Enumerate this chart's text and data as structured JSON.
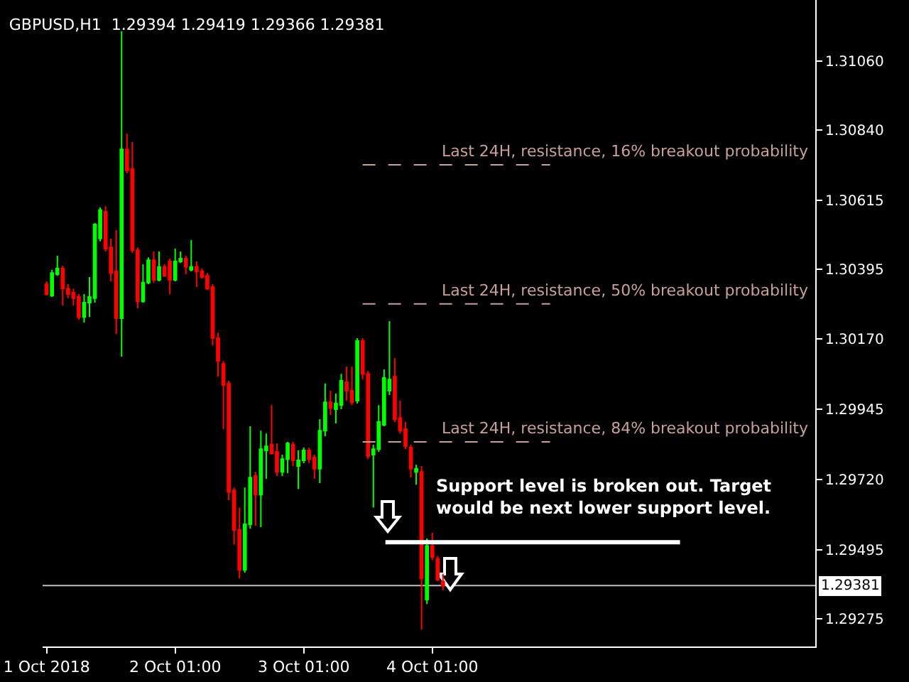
{
  "chart_data": {
    "type": "candlestick",
    "title": "GBPUSD,H1  1.29394 1.29419 1.29366 1.29381",
    "x": [
      "2018-10-01T01:00",
      "2018-10-01T02:00",
      "2018-10-01T03:00",
      "2018-10-01T04:00",
      "2018-10-01T05:00",
      "2018-10-01T06:00",
      "2018-10-01T07:00",
      "2018-10-01T08:00",
      "2018-10-01T09:00",
      "2018-10-01T10:00",
      "2018-10-01T11:00",
      "2018-10-01T12:00",
      "2018-10-01T13:00",
      "2018-10-01T14:00",
      "2018-10-01T15:00",
      "2018-10-01T16:00",
      "2018-10-01T17:00",
      "2018-10-01T18:00",
      "2018-10-01T19:00",
      "2018-10-01T20:00",
      "2018-10-01T21:00",
      "2018-10-01T22:00",
      "2018-10-01T23:00",
      "2018-10-02T00:00",
      "2018-10-02T01:00",
      "2018-10-02T02:00",
      "2018-10-02T03:00",
      "2018-10-02T04:00",
      "2018-10-02T05:00",
      "2018-10-02T06:00",
      "2018-10-02T07:00",
      "2018-10-02T08:00",
      "2018-10-02T09:00",
      "2018-10-02T10:00",
      "2018-10-02T11:00",
      "2018-10-02T12:00",
      "2018-10-02T13:00",
      "2018-10-02T14:00",
      "2018-10-02T15:00",
      "2018-10-02T16:00",
      "2018-10-02T17:00",
      "2018-10-02T18:00",
      "2018-10-02T19:00",
      "2018-10-02T20:00",
      "2018-10-02T21:00",
      "2018-10-02T22:00",
      "2018-10-02T23:00",
      "2018-10-03T00:00",
      "2018-10-03T01:00",
      "2018-10-03T02:00",
      "2018-10-03T03:00",
      "2018-10-03T04:00",
      "2018-10-03T05:00",
      "2018-10-03T06:00",
      "2018-10-03T07:00",
      "2018-10-03T08:00",
      "2018-10-03T09:00",
      "2018-10-03T10:00",
      "2018-10-03T11:00",
      "2018-10-03T12:00",
      "2018-10-03T13:00",
      "2018-10-03T14:00",
      "2018-10-03T15:00",
      "2018-10-03T16:00",
      "2018-10-03T17:00",
      "2018-10-03T18:00",
      "2018-10-03T19:00",
      "2018-10-03T20:00",
      "2018-10-03T21:00",
      "2018-10-03T22:00",
      "2018-10-03T23:00",
      "2018-10-04T00:00",
      "2018-10-04T01:00",
      "2018-10-04T02:00",
      "2018-10-04T03:00"
    ],
    "ohlc": [
      [
        1.30346,
        1.30355,
        1.3031,
        1.30314
      ],
      [
        1.3031,
        1.30392,
        1.30305,
        1.30382
      ],
      [
        1.30378,
        1.30437,
        1.30373,
        1.30396
      ],
      [
        1.30396,
        1.30405,
        1.30278,
        1.30332
      ],
      [
        1.30332,
        1.30346,
        1.30301,
        1.30314
      ],
      [
        1.30319,
        1.30332,
        1.30278,
        1.30301
      ],
      [
        1.30305,
        1.30314,
        1.30232,
        1.30241
      ],
      [
        1.30241,
        1.30314,
        1.30223,
        1.30287
      ],
      [
        1.30287,
        1.30369,
        1.30241,
        1.30305
      ],
      [
        1.30301,
        1.30542,
        1.30287,
        1.30537
      ],
      [
        1.30492,
        1.30592,
        1.30483,
        1.30583
      ],
      [
        1.30578,
        1.30596,
        1.30451,
        1.3046
      ],
      [
        1.30464,
        1.30492,
        1.30355,
        1.30382
      ],
      [
        1.30387,
        1.30519,
        1.30187,
        1.30237
      ],
      [
        1.30237,
        1.31156,
        1.30114,
        1.30778
      ],
      [
        1.30778,
        1.30828,
        1.30701,
        1.3071
      ],
      [
        1.30715,
        1.30801,
        1.30446,
        1.30455
      ],
      [
        1.30455,
        1.30464,
        1.30269,
        1.30291
      ],
      [
        1.30291,
        1.3041,
        1.30287,
        1.30351
      ],
      [
        1.30351,
        1.30432,
        1.30346,
        1.30423
      ],
      [
        1.30423,
        1.30451,
        1.30351,
        1.3036
      ],
      [
        1.3036,
        1.30451,
        1.30355,
        1.30401
      ],
      [
        1.30401,
        1.3041,
        1.30369,
        1.30373
      ],
      [
        1.30419,
        1.30428,
        1.30314,
        1.3036
      ],
      [
        1.3036,
        1.3046,
        1.30355,
        1.30419
      ],
      [
        1.30419,
        1.30451,
        1.30414,
        1.30428
      ],
      [
        1.30428,
        1.30437,
        1.30378,
        1.30401
      ],
      [
        1.30392,
        1.30487,
        1.30387,
        1.30401
      ],
      [
        1.30401,
        1.30419,
        1.30337,
        1.30387
      ],
      [
        1.30387,
        1.30396,
        1.30364,
        1.30369
      ],
      [
        1.30373,
        1.30382,
        1.30328,
        1.30332
      ],
      [
        1.30337,
        1.30346,
        1.3015,
        1.30173
      ],
      [
        1.30173,
        1.30191,
        1.3005,
        1.301
      ],
      [
        1.30091,
        1.301,
        1.29882,
        1.30023
      ],
      [
        1.30028,
        1.30037,
        1.29654,
        1.29681
      ],
      [
        1.29686,
        1.29695,
        1.29513,
        1.29559
      ],
      [
        1.29559,
        1.29631,
        1.29404,
        1.29431
      ],
      [
        1.29431,
        1.29695,
        1.29422,
        1.29577
      ],
      [
        1.29577,
        1.29891,
        1.29563,
        1.29727
      ],
      [
        1.29732,
        1.29745,
        1.29572,
        1.29672
      ],
      [
        1.29672,
        1.29877,
        1.29568,
        1.29818
      ],
      [
        1.29814,
        1.29868,
        1.29723,
        1.29827
      ],
      [
        1.29832,
        1.29959,
        1.298,
        1.29805
      ],
      [
        1.29809,
        1.29836,
        1.29732,
        1.29745
      ],
      [
        1.29745,
        1.298,
        1.29732,
        1.29786
      ],
      [
        1.29786,
        1.29841,
        1.29741,
        1.29836
      ],
      [
        1.29832,
        1.29841,
        1.29764,
        1.29782
      ],
      [
        1.29764,
        1.29814,
        1.2969,
        1.29782
      ],
      [
        1.29782,
        1.29823,
        1.29773,
        1.29814
      ],
      [
        1.29814,
        1.29823,
        1.29773,
        1.29786
      ],
      [
        1.29791,
        1.298,
        1.29723,
        1.29755
      ],
      [
        1.29755,
        1.29914,
        1.29709,
        1.29877
      ],
      [
        1.29877,
        1.30028,
        1.29859,
        1.29968
      ],
      [
        1.29968,
        1.30005,
        1.29927,
        1.2995
      ],
      [
        1.29946,
        1.29996,
        1.299,
        1.29964
      ],
      [
        1.29959,
        1.30059,
        1.29946,
        1.30037
      ],
      [
        1.30032,
        1.30082,
        1.29973,
        1.30005
      ],
      [
        1.30005,
        1.30082,
        1.29959,
        1.29968
      ],
      [
        1.29973,
        1.30173,
        1.29964,
        1.30164
      ],
      [
        1.30164,
        1.30173,
        1.30041,
        1.30059
      ],
      [
        1.30059,
        1.30068,
        1.29786,
        1.29795
      ],
      [
        1.298,
        1.29832,
        1.29631,
        1.29818
      ],
      [
        1.29818,
        1.29959,
        1.29809,
        1.29905
      ],
      [
        1.29896,
        1.30073,
        1.29891,
        1.30046
      ],
      [
        1.30005,
        1.30228,
        1.29991,
        1.30041
      ],
      [
        1.3005,
        1.30109,
        1.29905,
        1.29914
      ],
      [
        1.29918,
        1.29973,
        1.29868,
        1.29877
      ],
      [
        1.29882,
        1.29905,
        1.29818,
        1.29827
      ],
      [
        1.29823,
        1.29832,
        1.29727,
        1.29755
      ],
      [
        1.29745,
        1.29768,
        1.29704,
        1.29755
      ],
      [
        1.29745,
        1.29764,
        1.2924,
        1.29404
      ],
      [
        1.29336,
        1.29532,
        1.29322,
        1.29508
      ],
      [
        1.29508,
        1.2955,
        1.29463,
        1.29472
      ],
      [
        1.29467,
        1.29476,
        1.29395,
        1.294
      ],
      [
        1.29394,
        1.29419,
        1.29366,
        1.29381
      ]
    ],
    "colors": [
      "#ff0000",
      "#00ff00",
      "#00ff00",
      "#ff0000",
      "#ff0000",
      "#ff0000",
      "#ff0000",
      "#00ff00",
      "#00ff00",
      "#00ff00",
      "#00ff00",
      "#ff0000",
      "#ff0000",
      "#ff0000",
      "#00ff00",
      "#ff0000",
      "#ff0000",
      "#ff0000",
      "#00ff00",
      "#00ff00",
      "#ff0000",
      "#00ff00",
      "#ff0000",
      "#ff0000",
      "#00ff00",
      "#00ff00",
      "#ff0000",
      "#00ff00",
      "#ff0000",
      "#ff0000",
      "#ff0000",
      "#ff0000",
      "#ff0000",
      "#ff0000",
      "#ff0000",
      "#ff0000",
      "#ff0000",
      "#00ff00",
      "#00ff00",
      "#ff0000",
      "#00ff00",
      "#00ff00",
      "#ff0000",
      "#ff0000",
      "#00ff00",
      "#00ff00",
      "#ff0000",
      "#00ff00",
      "#00ff00",
      "#ff0000",
      "#ff0000",
      "#00ff00",
      "#00ff00",
      "#ff0000",
      "#00ff00",
      "#00ff00",
      "#ff0000",
      "#ff0000",
      "#00ff00",
      "#ff0000",
      "#ff0000",
      "#00ff00",
      "#00ff00",
      "#00ff00",
      "#00ff00",
      "#ff0000",
      "#ff0000",
      "#ff0000",
      "#ff0000",
      "#00ff00",
      "#ff0000",
      "#00ff00",
      "#ff0000",
      "#ff0000",
      "#ff0000"
    ],
    "series": [
      {
        "type": "line",
        "name": "Last 24H, resistance, 16% breakout probability",
        "x": [
          "2018-10-03T12:00",
          "2018-10-04T23:00"
        ],
        "values": [
          1.30728,
          1.30728
        ],
        "color": "#c8a09a",
        "line_style": "dashed"
      },
      {
        "type": "line",
        "name": "Last 24H, resistance, 50% breakout probability",
        "x": [
          "2018-10-03T12:00",
          "2018-10-04T23:00"
        ],
        "values": [
          1.30283,
          1.30283
        ],
        "color": "#c8a09a",
        "line_style": "dashed"
      },
      {
        "type": "line",
        "name": "Last 24H, resistance, 84% breakout probability",
        "x": [
          "2018-10-03T12:00",
          "2018-10-04T23:00"
        ],
        "values": [
          1.29841,
          1.29841
        ],
        "color": "#c8a09a",
        "line_style": "dashed"
      },
      {
        "type": "line",
        "x": [
          "2018-10-03T16:15",
          "2018-10-05T23:15"
        ],
        "values": [
          1.2952,
          1.2952
        ],
        "color": "#ffffff",
        "line_style": "solid"
      }
    ],
    "ref_lines": [
      {
        "axis": "y",
        "value": 1.29381,
        "label": "1.29381",
        "color": "#c0c0c0"
      }
    ],
    "annotations": [
      "Support level is broken out. Target would be next lower support level."
    ],
    "xlim": [
      "2018-10-01T00:15",
      "2018-10-07T00:30"
    ],
    "ylim": [
      1.29186,
      1.31256
    ],
    "xticks": [
      {
        "value": "2018-10-01T01:00",
        "label": "1 Oct 2018"
      },
      {
        "value": "2018-10-02T01:00",
        "label": "2 Oct 01:00"
      },
      {
        "value": "2018-10-03T01:00",
        "label": "3 Oct 01:00"
      },
      {
        "value": "2018-10-04T01:00",
        "label": "4 Oct 01:00"
      }
    ],
    "yticks": [
      1.29275,
      1.29495,
      {
        "value": 1.2972,
        "label": "1.29720"
      },
      1.29945,
      {
        "value": 1.3017,
        "label": "1.30170"
      },
      1.30395,
      1.30615,
      {
        "value": 1.3084,
        "label": "1.30840"
      },
      {
        "value": 1.3106,
        "label": "1.31060"
      }
    ],
    "grid": false
  }
}
